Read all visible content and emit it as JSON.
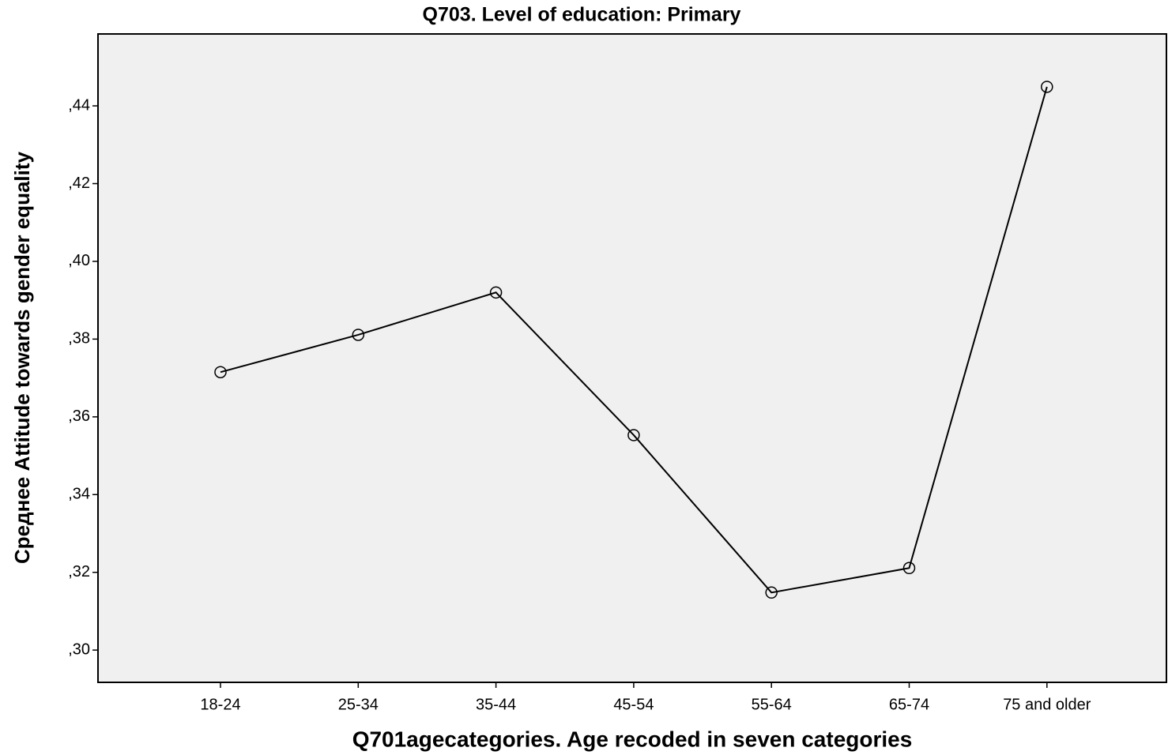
{
  "chart_data": {
    "type": "line",
    "title": "Q703. Level of education: Primary",
    "x_label": "Q701agecategories. Age recoded in seven categories",
    "y_label": "Среднее Attitude towards gender equality",
    "categories": [
      "18-24",
      "25-34",
      "35-44",
      "45-54",
      "55-64",
      "65-74",
      "75 and older"
    ],
    "series": [
      {
        "name": "Среднее Attitude towards gender equality",
        "color": "#000000",
        "values": [
          0.3715,
          0.3811,
          0.392,
          0.3553,
          0.3148,
          0.3211,
          0.4449
        ]
      }
    ],
    "ylim": [
      0.2917,
      0.4585
    ],
    "yticks": [
      {
        "value": 0.3,
        "label": ",30"
      },
      {
        "value": 0.32,
        "label": ",32"
      },
      {
        "value": 0.34,
        "label": ",34"
      },
      {
        "value": 0.36,
        "label": ",36"
      },
      {
        "value": 0.38,
        "label": ",38"
      },
      {
        "value": 0.4,
        "label": ",40"
      },
      {
        "value": 0.42,
        "label": ",42"
      },
      {
        "value": 0.44,
        "label": ",44"
      }
    ],
    "grid": false
  }
}
